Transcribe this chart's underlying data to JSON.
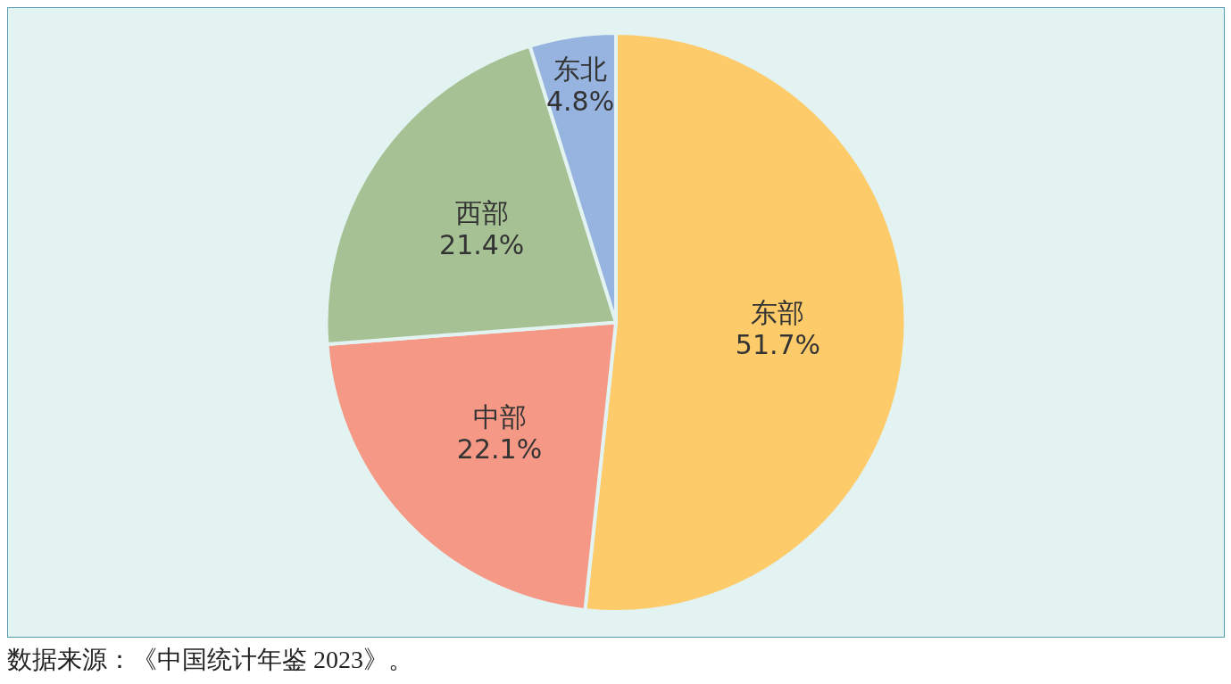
{
  "chart_data": {
    "type": "pie",
    "categories": [
      "东部",
      "中部",
      "西部",
      "东北"
    ],
    "values": [
      51.7,
      22.1,
      21.4,
      4.8
    ],
    "colors": [
      "#fdcb6a",
      "#f59885",
      "#a6c194",
      "#97b4e0"
    ],
    "value_labels": [
      "51.7%",
      "22.1%",
      "21.4%",
      "4.8%"
    ],
    "legend": false,
    "annotations": [
      "数据来源：《中国统计年鉴 2023》。"
    ]
  }
}
